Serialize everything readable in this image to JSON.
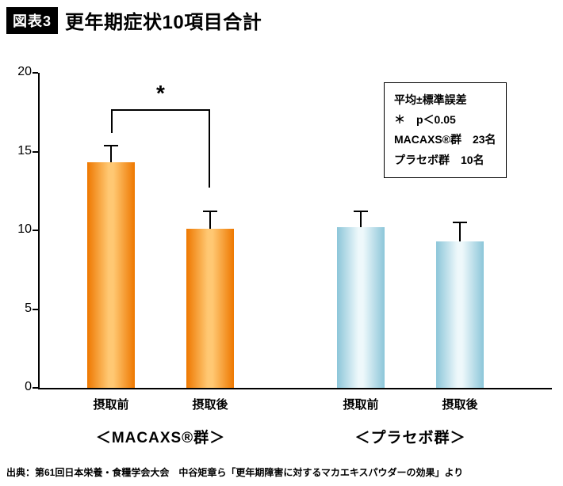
{
  "header": {
    "badge": "図表3",
    "title": "更年期症状10項目合計"
  },
  "footer": {
    "source": "出典：第61回日本栄養・食糧学会大会　中谷矩章ら「更年期障害に対するマカエキスパウダーの効果」より"
  },
  "chart_data": {
    "type": "bar",
    "title": "更年期症状10項目合計",
    "xlabel": "",
    "ylabel": "",
    "ylim": [
      0,
      20
    ],
    "yticks": [
      0,
      5,
      10,
      15,
      20
    ],
    "grid": false,
    "legend_position": "top-right",
    "legend_lines": [
      "平均±標準誤差",
      "＊　p＜0.05",
      "MACAXS®群　23名",
      "プラセボ群　10名"
    ],
    "groups": [
      {
        "label": "＜MACAXS®群＞",
        "bar_color_edge": "#ee7800",
        "bar_color_mid": "#ffc873",
        "bars": [
          {
            "category": "摂取前",
            "value": 14.3,
            "error": 1.1
          },
          {
            "category": "摂取後",
            "value": 10.1,
            "error": 1.1
          }
        ]
      },
      {
        "label": "＜プラセボ群＞",
        "bar_color_edge": "#8cc6d9",
        "bar_color_mid": "#eef8fb",
        "bars": [
          {
            "category": "摂取前",
            "value": 10.2,
            "error": 1.0
          },
          {
            "category": "摂取後",
            "value": 9.3,
            "error": 1.2
          }
        ]
      }
    ],
    "significance": {
      "label": "*",
      "between": [
        "MACAXS®群 摂取前",
        "MACAXS®群 摂取後"
      ],
      "bracket_top_value": 17.7,
      "left_leg_bottom_value": 16.2,
      "right_leg_bottom_value": 12.7
    }
  }
}
